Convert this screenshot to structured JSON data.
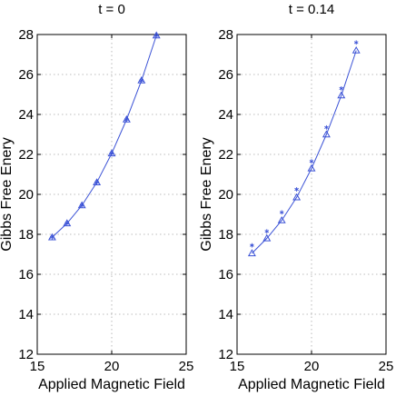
{
  "chart_data": [
    {
      "type": "line",
      "title": "t = 0",
      "xlabel": "Applied Magnetic Field",
      "ylabel": "Gibbs Free Enery",
      "xlim": [
        15,
        25
      ],
      "ylim": [
        12,
        28
      ],
      "xticks": [
        15,
        20,
        25
      ],
      "yticks": [
        12,
        14,
        16,
        18,
        20,
        22,
        24,
        26,
        28
      ],
      "grid": true,
      "color": "#3b52d6",
      "series": [
        {
          "marker": "curve",
          "x": [
            16,
            17,
            18,
            19,
            20,
            21,
            22,
            23
          ],
          "values": [
            17.85,
            18.55,
            19.45,
            20.6,
            22.05,
            23.75,
            25.7,
            27.95
          ]
        },
        {
          "marker": "triangle",
          "x": [
            16,
            17,
            18,
            19,
            20,
            21,
            22,
            23
          ],
          "values": [
            17.85,
            18.55,
            19.45,
            20.6,
            22.05,
            23.75,
            25.7,
            27.95
          ]
        },
        {
          "marker": "star",
          "x": [
            16,
            17,
            18,
            19,
            20,
            21,
            22,
            23
          ],
          "values": [
            17.85,
            18.55,
            19.45,
            20.6,
            22.05,
            23.75,
            25.7,
            27.95
          ]
        }
      ]
    },
    {
      "type": "line",
      "title": "t = 0.14",
      "xlabel": "Applied Magnetic Field",
      "ylabel": "Gibbs Free Enery",
      "xlim": [
        15,
        25
      ],
      "ylim": [
        12,
        28
      ],
      "xticks": [
        15,
        20,
        25
      ],
      "yticks": [
        12,
        14,
        16,
        18,
        20,
        22,
        24,
        26,
        28
      ],
      "grid": true,
      "color": "#3b52d6",
      "series": [
        {
          "marker": "curve",
          "x": [
            16,
            17,
            18,
            19,
            20,
            21,
            22,
            23
          ],
          "values": [
            17.05,
            17.8,
            18.7,
            19.85,
            21.3,
            23.0,
            24.95,
            27.2
          ]
        },
        {
          "marker": "triangle",
          "x": [
            16,
            17,
            18,
            19,
            20,
            21,
            22,
            23
          ],
          "values": [
            17.05,
            17.8,
            18.7,
            19.85,
            21.3,
            23.0,
            24.95,
            27.2
          ]
        },
        {
          "marker": "star",
          "x": [
            16,
            17,
            18,
            19,
            20,
            21,
            22,
            23
          ],
          "values": [
            17.45,
            18.15,
            19.1,
            20.25,
            21.65,
            23.35,
            25.3,
            27.6
          ]
        }
      ]
    }
  ]
}
